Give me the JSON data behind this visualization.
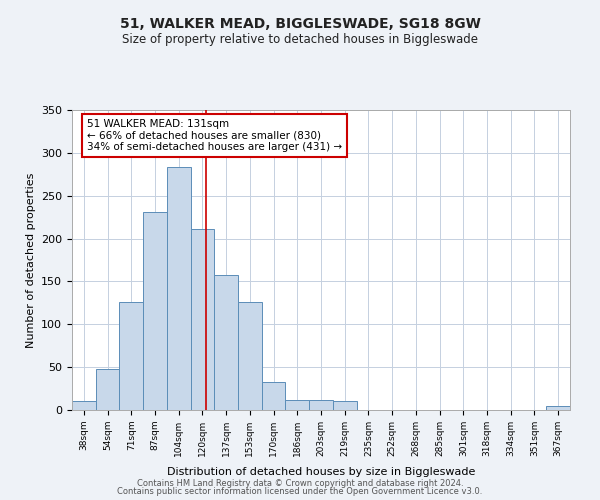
{
  "title1": "51, WALKER MEAD, BIGGLESWADE, SG18 8GW",
  "title2": "Size of property relative to detached houses in Biggleswade",
  "xlabel": "Distribution of detached houses by size in Biggleswade",
  "ylabel": "Number of detached properties",
  "bar_color": "#c8d8ea",
  "bar_edge_color": "#5b8db8",
  "categories": [
    "38sqm",
    "54sqm",
    "71sqm",
    "87sqm",
    "104sqm",
    "120sqm",
    "137sqm",
    "153sqm",
    "170sqm",
    "186sqm",
    "203sqm",
    "219sqm",
    "235sqm",
    "252sqm",
    "268sqm",
    "285sqm",
    "301sqm",
    "318sqm",
    "334sqm",
    "351sqm",
    "367sqm"
  ],
  "values": [
    10,
    48,
    126,
    231,
    283,
    211,
    157,
    126,
    33,
    12,
    12,
    10,
    0,
    0,
    0,
    0,
    0,
    0,
    0,
    0,
    5
  ],
  "ylim": [
    0,
    350
  ],
  "yticks": [
    0,
    50,
    100,
    150,
    200,
    250,
    300,
    350
  ],
  "marker_label": "51 WALKER MEAD: 131sqm",
  "annotation_line1": "← 66% of detached houses are smaller (830)",
  "annotation_line2": "34% of semi-detached houses are larger (431) →",
  "annotation_box_color": "#ffffff",
  "annotation_box_edge_color": "#cc0000",
  "marker_line_color": "#cc0000",
  "footer1": "Contains HM Land Registry data © Crown copyright and database right 2024.",
  "footer2": "Contains public sector information licensed under the Open Government Licence v3.0.",
  "background_color": "#eef2f7",
  "plot_background": "#ffffff",
  "grid_color": "#c5d0e0"
}
